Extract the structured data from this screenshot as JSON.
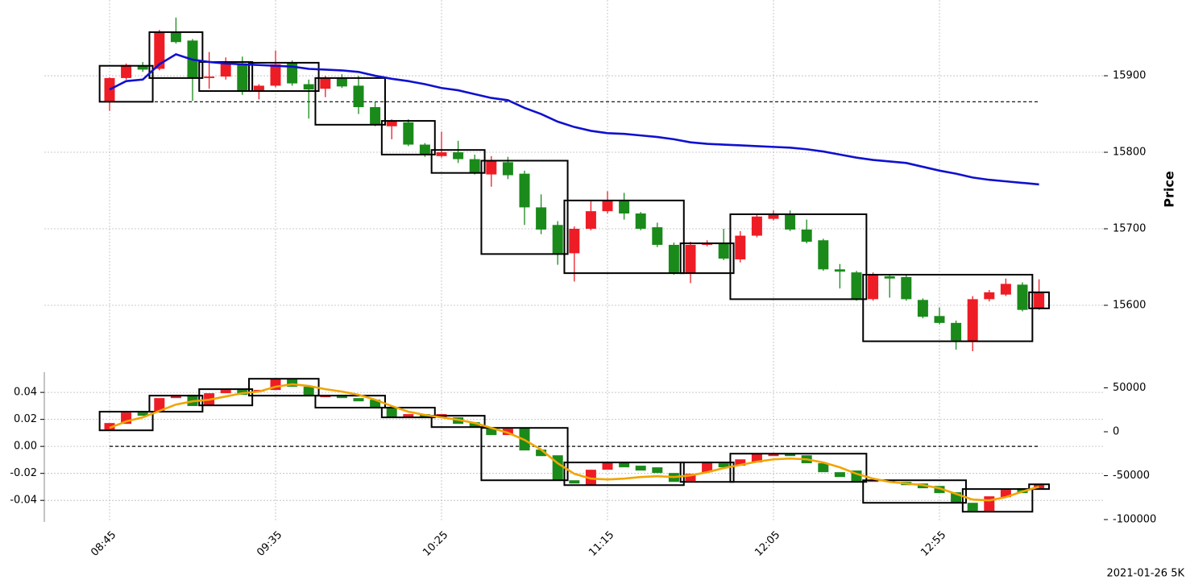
{
  "footer": "2021-01-26 5K",
  "chart_data": [
    {
      "type": "candlestick",
      "ylabel": "Price",
      "categories": [
        "08:45",
        null,
        null,
        null,
        null,
        null,
        null,
        null,
        null,
        null,
        "09:35",
        null,
        null,
        null,
        null,
        null,
        null,
        null,
        null,
        null,
        "10:25",
        null,
        null,
        null,
        null,
        null,
        null,
        null,
        null,
        null,
        "11:15",
        null,
        null,
        null,
        null,
        null,
        null,
        null,
        null,
        null,
        "12:05",
        null,
        null,
        null,
        null,
        null,
        null,
        null,
        null,
        null,
        "12:55",
        null,
        null,
        null,
        null,
        null,
        null
      ],
      "open": [
        15866,
        15897,
        15913,
        15909,
        15957,
        15946,
        15897,
        15899,
        15916,
        15880,
        15887,
        15917,
        15889,
        15883,
        15897,
        15887,
        15859,
        15834,
        15839,
        15810,
        15795,
        15800,
        15791,
        15771,
        15787,
        15772,
        15728,
        15705,
        15668,
        15700,
        15723,
        15737,
        15720,
        15702,
        15679,
        15642,
        15679,
        15681,
        15660,
        15691,
        15713,
        15719,
        15699,
        15685,
        15647,
        15643,
        15608,
        15638,
        15637,
        15607,
        15586,
        15577,
        15553,
        15608,
        15614,
        15627,
        15596
      ],
      "high": [
        15898,
        15916,
        15918,
        15960,
        15976,
        15948,
        15931,
        15924,
        15925,
        15889,
        15933,
        15920,
        15895,
        15900,
        15902,
        15900,
        15866,
        15843,
        15843,
        15812,
        15827,
        15815,
        15797,
        15795,
        15794,
        15776,
        15745,
        15710,
        15703,
        15736,
        15749,
        15747,
        15722,
        15708,
        15682,
        15683,
        15685,
        15700,
        15697,
        15719,
        15724,
        15724,
        15712,
        15687,
        15654,
        15645,
        15643,
        15640,
        15640,
        15609,
        15597,
        15580,
        15612,
        15620,
        15635,
        15630,
        15634
      ],
      "low": [
        15854,
        15895,
        15905,
        15907,
        15942,
        15867,
        15883,
        15895,
        15875,
        15869,
        15885,
        15887,
        15844,
        15872,
        15884,
        15850,
        15834,
        15817,
        15808,
        15794,
        15793,
        15786,
        15771,
        15755,
        15765,
        15705,
        15693,
        15653,
        15631,
        15698,
        15720,
        15712,
        15698,
        15676,
        15640,
        15629,
        15677,
        15659,
        15656,
        15689,
        15711,
        15697,
        15681,
        15645,
        15622,
        15606,
        15606,
        15610,
        15606,
        15583,
        15575,
        15542,
        15540,
        15605,
        15612,
        15592,
        15594
      ],
      "close": [
        15897,
        15914,
        15908,
        15957,
        15944,
        15897,
        15899,
        15916,
        15880,
        15887,
        15915,
        15890,
        15882,
        15897,
        15886,
        15859,
        15836,
        15841,
        15810,
        15797,
        15800,
        15791,
        15773,
        15789,
        15770,
        15728,
        15699,
        15668,
        15700,
        15723,
        15737,
        15720,
        15700,
        15679,
        15642,
        15679,
        15681,
        15661,
        15691,
        15716,
        15720,
        15699,
        15683,
        15647,
        15644,
        15608,
        15640,
        15635,
        15608,
        15585,
        15577,
        15554,
        15608,
        15617,
        15628,
        15594,
        15617
      ],
      "up_color": "#ee1c25",
      "down_color": "#1a8a1a",
      "series": [
        {
          "color": "#1010d0",
          "values": [
            15882,
            15893,
            15895,
            15915,
            15928,
            15921,
            15918,
            15916,
            15915,
            15914,
            15913,
            15912,
            15909,
            15908,
            15907,
            15905,
            15900,
            15896,
            15893,
            15889,
            15884,
            15881,
            15876,
            15871,
            15868,
            15858,
            15850,
            15840,
            15833,
            15828,
            15825,
            15824,
            15822,
            15820,
            15817,
            15813,
            15811,
            15810,
            15809,
            15808,
            15807,
            15806,
            15804,
            15801,
            15797,
            15793,
            15790,
            15788,
            15786,
            15781,
            15776,
            15772,
            15767,
            15764,
            15762,
            15760,
            15758
          ]
        }
      ],
      "boxes": [
        {
          "start": 0,
          "end": 2,
          "low": 15866,
          "high": 15913
        },
        {
          "start": 3,
          "end": 5,
          "low": 15897,
          "high": 15957
        },
        {
          "start": 6,
          "end": 8,
          "low": 15880,
          "high": 15918
        },
        {
          "start": 9,
          "end": 12,
          "low": 15880,
          "high": 15917
        },
        {
          "start": 13,
          "end": 16,
          "low": 15836,
          "high": 15897
        },
        {
          "start": 17,
          "end": 19,
          "low": 15797,
          "high": 15841
        },
        {
          "start": 20,
          "end": 22,
          "low": 15773,
          "high": 15803
        },
        {
          "start": 23,
          "end": 27,
          "low": 15667,
          "high": 15789
        },
        {
          "start": 28,
          "end": 34,
          "low": 15642,
          "high": 15737
        },
        {
          "start": 35,
          "end": 37,
          "low": 15642,
          "high": 15681
        },
        {
          "start": 38,
          "end": 45,
          "low": 15608,
          "high": 15719
        },
        {
          "start": 46,
          "end": 55,
          "low": 15553,
          "high": 15640
        },
        {
          "start": 56,
          "end": 56,
          "low": 15596,
          "high": 15617
        }
      ],
      "ref_line": 15866,
      "ylim": [
        15520,
        15999
      ],
      "yticks": [
        15600,
        15700,
        15800,
        15900
      ],
      "grid": true
    },
    {
      "type": "candlestick",
      "open": [
        0.0125,
        0.0167,
        0.0251,
        0.0263,
        0.0358,
        0.0382,
        0.0304,
        0.0394,
        0.0418,
        0.0406,
        0.0418,
        0.0496,
        0.0442,
        0.0364,
        0.0382,
        0.0358,
        0.0346,
        0.0287,
        0.0215,
        0.0239,
        0.0215,
        0.0215,
        0.0179,
        0.0143,
        0.0084,
        0.0137,
        -0.0024,
        -0.0066,
        -0.0251,
        -0.0287,
        -0.0173,
        -0.0119,
        -0.0143,
        -0.0155,
        -0.0197,
        -0.0257,
        -0.0191,
        -0.0125,
        -0.0143,
        -0.0119,
        -0.0072,
        -0.0054,
        -0.0066,
        -0.0125,
        -0.0191,
        -0.0179,
        -0.0263,
        -0.0251,
        -0.0263,
        -0.0275,
        -0.0293,
        -0.034,
        -0.0418,
        -0.0478,
        -0.0376,
        -0.031,
        -0.031
      ],
      "close": [
        0.0173,
        0.0251,
        0.0227,
        0.0358,
        0.0382,
        0.0299,
        0.0394,
        0.0418,
        0.0382,
        0.0418,
        0.0496,
        0.0442,
        0.0376,
        0.0382,
        0.0358,
        0.0334,
        0.0287,
        0.0215,
        0.0239,
        0.0215,
        0.0239,
        0.0167,
        0.0143,
        0.0084,
        0.0131,
        -0.003,
        -0.0072,
        -0.0251,
        -0.0275,
        -0.0173,
        -0.0119,
        -0.0155,
        -0.0179,
        -0.0197,
        -0.0263,
        -0.0203,
        -0.0113,
        -0.0155,
        -0.0096,
        -0.0054,
        -0.0054,
        -0.0072,
        -0.0125,
        -0.0191,
        -0.0227,
        -0.0263,
        -0.0251,
        -0.0263,
        -0.0287,
        -0.031,
        -0.0346,
        -0.0418,
        -0.0478,
        -0.037,
        -0.0322,
        -0.0346,
        -0.0281
      ],
      "up_color": "#ee1c25",
      "down_color": "#1a8a1a",
      "series": [
        {
          "color": "#f0a500",
          "values": [
            0.0137,
            0.0185,
            0.0215,
            0.0263,
            0.031,
            0.0334,
            0.0346,
            0.037,
            0.0394,
            0.0406,
            0.0442,
            0.046,
            0.0448,
            0.0424,
            0.0406,
            0.0382,
            0.0346,
            0.0299,
            0.0257,
            0.0233,
            0.0215,
            0.0197,
            0.0173,
            0.0137,
            0.0101,
            0.0048,
            -0.0024,
            -0.0125,
            -0.0203,
            -0.0239,
            -0.0245,
            -0.0239,
            -0.0227,
            -0.0221,
            -0.0227,
            -0.0215,
            -0.0191,
            -0.0161,
            -0.0137,
            -0.0113,
            -0.0096,
            -0.009,
            -0.0096,
            -0.0119,
            -0.0155,
            -0.0203,
            -0.0239,
            -0.0263,
            -0.0275,
            -0.0287,
            -0.031,
            -0.0352,
            -0.0394,
            -0.04,
            -0.0376,
            -0.0334,
            -0.0299
          ]
        }
      ],
      "boxes": [
        {
          "start": 0,
          "end": 2,
          "low": 0.0119,
          "high": 0.0257
        },
        {
          "start": 3,
          "end": 5,
          "low": 0.0257,
          "high": 0.0376
        },
        {
          "start": 6,
          "end": 8,
          "low": 0.0304,
          "high": 0.0424
        },
        {
          "start": 9,
          "end": 12,
          "low": 0.0376,
          "high": 0.0501
        },
        {
          "start": 13,
          "end": 16,
          "low": 0.0287,
          "high": 0.0376
        },
        {
          "start": 17,
          "end": 19,
          "low": 0.0215,
          "high": 0.0287
        },
        {
          "start": 20,
          "end": 22,
          "low": 0.0143,
          "high": 0.0227
        },
        {
          "start": 23,
          "end": 27,
          "low": -0.0251,
          "high": 0.0137
        },
        {
          "start": 28,
          "end": 34,
          "low": -0.0287,
          "high": -0.0119
        },
        {
          "start": 35,
          "end": 37,
          "low": -0.0263,
          "high": -0.0119
        },
        {
          "start": 38,
          "end": 45,
          "low": -0.0263,
          "high": -0.0054
        },
        {
          "start": 46,
          "end": 51,
          "low": -0.0418,
          "high": -0.0251
        },
        {
          "start": 52,
          "end": 55,
          "low": -0.0484,
          "high": -0.0316
        },
        {
          "start": 56,
          "end": 56,
          "low": -0.0316,
          "high": -0.0281
        }
      ],
      "ref_line": 0,
      "ylim": [
        -0.056,
        0.055
      ],
      "yticks": [
        0.04,
        0.02,
        {
          "value": 0,
          "label": "0.00"
        },
        -0.02,
        -0.04
      ],
      "y2lim": [
        -102750,
        67900
      ],
      "y2ticks": [
        50000,
        0,
        -50000,
        -100000
      ],
      "grid": true
    }
  ]
}
